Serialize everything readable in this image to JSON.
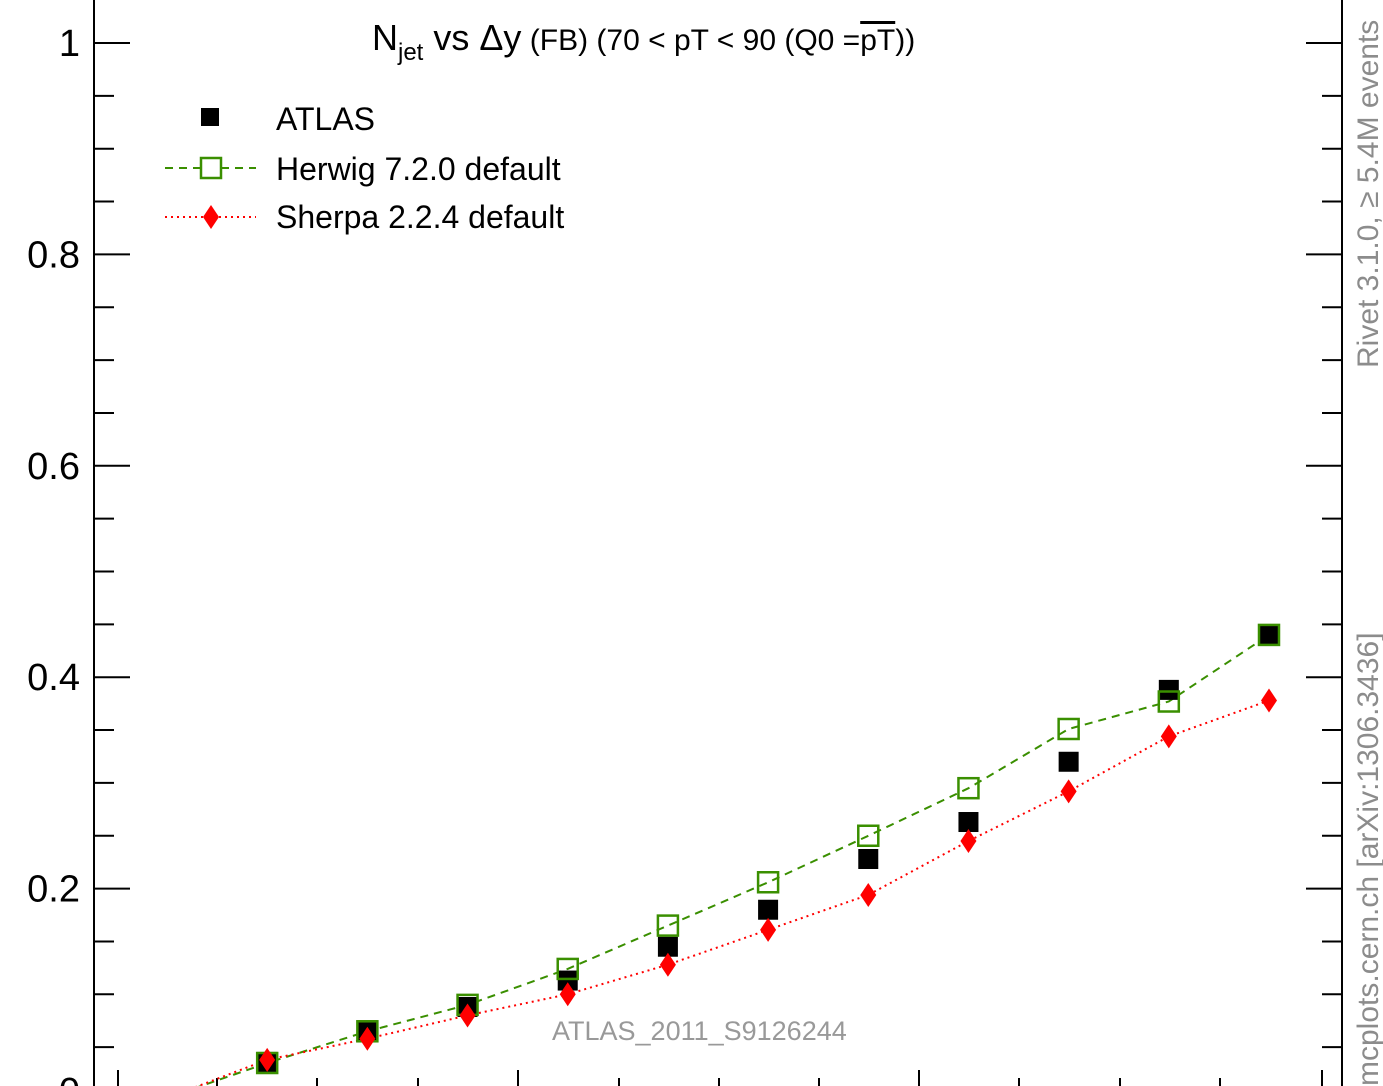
{
  "chart_data": {
    "type": "line",
    "title": {
      "main": "N",
      "subscript": "jet",
      "middle": " vs ",
      "delta": "Δ",
      "y": "y",
      "small": " (FB) ",
      "range": "(70 < pT <  90 (Q0 =",
      "overline": "pT",
      "close": "))"
    },
    "xlabel": "",
    "ylabel": "",
    "ylim": [
      0,
      1.04
    ],
    "y_ticks": [
      "0.2",
      "0.4",
      "0.6",
      "0.8",
      "1"
    ],
    "y_ticks_values": [
      0.2,
      0.4,
      0.6,
      0.8,
      1.0
    ],
    "bottom_cut_label": "0",
    "x": [
      0.5,
      1.5,
      2.5,
      3.5,
      4.5,
      5.5,
      6.5,
      7.5,
      8.5,
      9.5,
      10.5,
      11.5
    ],
    "xlim": [
      0,
      12
    ],
    "series": [
      {
        "name": "ATLAS",
        "style": "data",
        "color": "#000000",
        "marker": "filled-square",
        "values": [
          0.002,
          0.036,
          0.066,
          0.088,
          0.113,
          0.145,
          0.18,
          0.228,
          0.263,
          0.32,
          0.388,
          0.44
        ]
      },
      {
        "name": "Herwig 7.2.0 default",
        "style": "dashed",
        "color": "#3a8f00",
        "marker": "open-square",
        "values": [
          0.002,
          0.035,
          0.065,
          0.09,
          0.124,
          0.165,
          0.206,
          0.25,
          0.295,
          0.351,
          0.377,
          0.44
        ]
      },
      {
        "name": "Sherpa 2.2.4 default",
        "style": "dotted",
        "color": "#ff0000",
        "marker": "filled-diamond",
        "values": [
          0.002,
          0.038,
          0.058,
          0.08,
          0.1,
          0.128,
          0.161,
          0.194,
          0.245,
          0.292,
          0.344,
          0.378
        ]
      }
    ],
    "grid": false,
    "legend_position": "top-left"
  },
  "side_label_top": "Rivet 3.1.0, ≥ 5.4M events",
  "side_label_bottom": "mcplots.cern.ch [arXiv:1306.3436]",
  "watermark": "ATLAS_2011_S9126244"
}
